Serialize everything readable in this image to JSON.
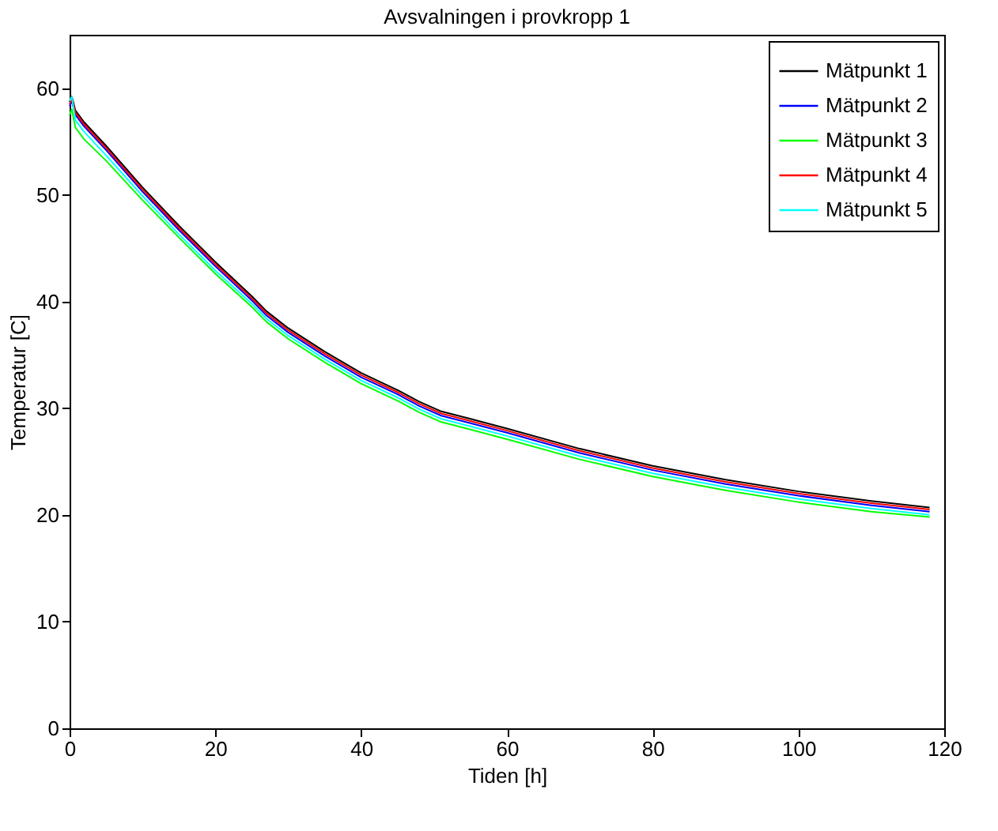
{
  "chart_data": {
    "type": "line",
    "title": "Avsvalningen i provkropp 1",
    "xlabel": "Tiden [h]",
    "ylabel": "Temperatur [C]",
    "x": [
      0,
      0.3,
      0.8,
      2,
      5,
      10,
      15,
      20,
      25,
      27,
      30,
      35,
      40,
      45,
      48,
      51,
      55,
      60,
      70,
      80,
      90,
      100,
      110,
      118
    ],
    "xlim": [
      0,
      120
    ],
    "xticks": [
      0,
      20,
      40,
      60,
      80,
      100,
      120
    ],
    "ylim": [
      0,
      65
    ],
    "yticks": [
      0,
      10,
      20,
      30,
      40,
      50,
      60
    ],
    "grid": false,
    "legend": "top right",
    "line_style": "solid",
    "marker": "none",
    "series": [
      {
        "name": "Mätpunkt 1",
        "color": "#000000",
        "values": [
          58.7,
          59.2,
          57.9,
          56.8,
          54.6,
          50.7,
          47.1,
          43.7,
          40.5,
          39.1,
          37.5,
          35.3,
          33.3,
          31.7,
          30.6,
          29.7,
          29.0,
          28.1,
          26.2,
          24.6,
          23.3,
          22.2,
          21.3,
          20.7
        ]
      },
      {
        "name": "Mätpunkt 2",
        "color": "#0000ff",
        "values": [
          58.3,
          58.8,
          57.5,
          56.4,
          54.2,
          50.3,
          46.7,
          43.3,
          40.1,
          38.7,
          37.1,
          34.9,
          32.9,
          31.3,
          30.2,
          29.3,
          28.6,
          27.7,
          25.8,
          24.2,
          22.9,
          21.8,
          20.9,
          20.3
        ]
      },
      {
        "name": "Mätpunkt 3",
        "color": "#00ff00",
        "values": [
          57.5,
          58,
          56.3,
          55.2,
          53.2,
          49.5,
          46,
          42.6,
          39.5,
          38.1,
          36.5,
          34.3,
          32.3,
          30.7,
          29.6,
          28.7,
          28.0,
          27.1,
          25.2,
          23.6,
          22.3,
          21.2,
          20.3,
          19.8
        ]
      },
      {
        "name": "Mätpunkt 4",
        "color": "#ff0000",
        "values": [
          58.5,
          59,
          57.7,
          56.6,
          54.4,
          50.5,
          46.9,
          43.5,
          40.3,
          38.9,
          37.3,
          35.1,
          33.1,
          31.5,
          30.4,
          29.5,
          28.8,
          27.9,
          26.0,
          24.4,
          23.1,
          22.0,
          21.1,
          20.5
        ]
      },
      {
        "name": "Mätpunkt 5",
        "color": "#00ffff",
        "values": [
          58.8,
          59.2,
          57,
          55.9,
          53.7,
          49.9,
          46.3,
          42.9,
          39.8,
          38.4,
          36.8,
          34.6,
          32.6,
          31.0,
          29.9,
          29.0,
          28.3,
          27.4,
          25.5,
          23.9,
          22.6,
          21.5,
          20.6,
          20.0
        ]
      }
    ]
  }
}
